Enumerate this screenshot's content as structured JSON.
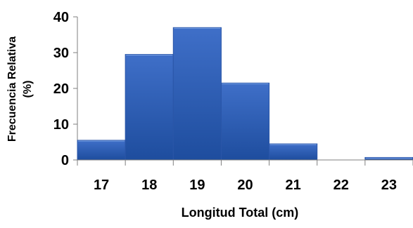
{
  "chart_data": {
    "type": "bar",
    "categories": [
      "17",
      "18",
      "19",
      "20",
      "21",
      "22",
      "23"
    ],
    "values": [
      5.5,
      29.5,
      37,
      21.5,
      4.5,
      0,
      0.7
    ],
    "xlabel": "Longitud  Total (cm)",
    "ylabel_line1": "Frecuencia Relativa",
    "ylabel_line2": "(%)",
    "ylim": [
      0,
      40
    ],
    "yticks": [
      0,
      10,
      20,
      30,
      40
    ],
    "grid": false,
    "bar_color": "#3f6fc8",
    "bar_color_dark": "#1e4d9e",
    "bar_border": "#2a56a8"
  }
}
